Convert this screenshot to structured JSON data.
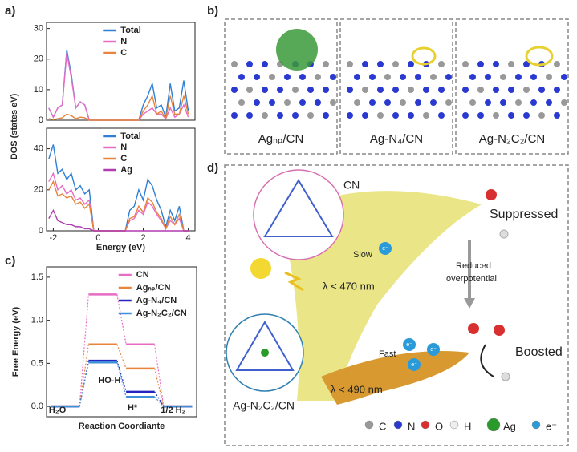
{
  "panel_labels": [
    "a)",
    "b)",
    "c)",
    "d)"
  ],
  "chart_data": [
    {
      "type": "line",
      "legend": "top-center",
      "x": [
        -2.2,
        -2.0,
        -1.8,
        -1.6,
        -1.4,
        -1.2,
        -1.0,
        -0.8,
        -0.6,
        -0.4,
        -0.2,
        0,
        0.2,
        0.4,
        0.6,
        0.8,
        1.0,
        1.2,
        1.4,
        1.6,
        1.8,
        2.0,
        2.2,
        2.4,
        2.6,
        2.8,
        3.0,
        3.2,
        3.4,
        3.6,
        3.8,
        4.0
      ],
      "xlim": [
        -2.3,
        4.3
      ],
      "ylim": [
        0,
        32
      ],
      "yticks": [
        0,
        10,
        20,
        30
      ],
      "series": [
        {
          "name": "Total",
          "color": "#2f7fd6",
          "values": [
            4,
            1,
            4,
            5,
            23,
            15,
            4,
            6,
            5,
            0,
            0,
            0,
            0,
            0,
            0,
            0,
            0,
            0,
            0,
            0,
            0,
            5,
            8,
            12,
            4,
            5,
            1,
            12,
            3,
            4,
            13,
            3
          ]
        },
        {
          "name": "N",
          "color": "#e86cc4",
          "values": [
            4,
            1,
            4,
            5,
            22,
            14,
            4,
            6,
            5,
            0,
            0,
            0,
            0,
            0,
            0,
            0,
            0,
            0,
            0,
            0,
            0,
            2,
            3,
            4,
            2,
            2,
            0.5,
            4,
            1,
            2,
            5,
            1
          ]
        },
        {
          "name": "C",
          "color": "#e8843c",
          "values": [
            0.5,
            0.2,
            0.5,
            0.8,
            2,
            1.5,
            0.5,
            1,
            0.8,
            0,
            0,
            0,
            0,
            0,
            0,
            0,
            0,
            0,
            0,
            0,
            0,
            3,
            5,
            8,
            2,
            3,
            0.5,
            8,
            2,
            2,
            8,
            2
          ]
        }
      ]
    },
    {
      "type": "line",
      "legend": "top-center",
      "xlabel": "Energy (eV)",
      "ylabel": "DOS (states eV)",
      "x": [
        -2.2,
        -2.0,
        -1.8,
        -1.6,
        -1.4,
        -1.2,
        -1.0,
        -0.8,
        -0.6,
        -0.4,
        -0.2,
        0,
        0.2,
        0.4,
        0.6,
        0.8,
        1.0,
        1.2,
        1.4,
        1.6,
        1.8,
        2.0,
        2.2,
        2.4,
        2.6,
        2.8,
        3.0,
        3.2,
        3.4,
        3.6,
        3.8,
        4.0
      ],
      "xlim": [
        -2.3,
        4.3
      ],
      "ylim": [
        0,
        50
      ],
      "xticks": [
        -2,
        0,
        2,
        4
      ],
      "yticks": [
        0,
        20,
        40
      ],
      "series": [
        {
          "name": "Total",
          "color": "#2f7fd6",
          "values": [
            35,
            42,
            28,
            30,
            25,
            28,
            20,
            22,
            18,
            20,
            0,
            0,
            0,
            0,
            0,
            0,
            0,
            0,
            10,
            12,
            20,
            15,
            25,
            22,
            15,
            10,
            2,
            10,
            5,
            12,
            0,
            0
          ]
        },
        {
          "name": "N",
          "color": "#e86cc4",
          "values": [
            24,
            28,
            20,
            22,
            18,
            20,
            15,
            16,
            13,
            15,
            0,
            0,
            0,
            0,
            0,
            0,
            0,
            0,
            5,
            6,
            10,
            8,
            14,
            12,
            8,
            5,
            1,
            5,
            3,
            6,
            0,
            0
          ]
        },
        {
          "name": "C",
          "color": "#e8843c",
          "values": [
            20,
            24,
            17,
            18,
            16,
            17,
            13,
            14,
            11,
            13,
            0,
            0,
            0,
            0,
            0,
            0,
            0,
            0,
            6,
            7,
            12,
            9,
            16,
            14,
            9,
            6,
            1,
            7,
            3,
            8,
            0,
            0
          ]
        },
        {
          "name": "Ag",
          "color": "#b03cb0",
          "values": [
            6,
            10,
            5,
            4,
            3,
            3,
            2,
            2,
            1,
            1,
            0,
            0,
            0,
            0,
            0,
            0,
            0,
            0,
            0,
            0,
            0,
            0,
            0,
            0,
            0,
            0,
            0,
            0,
            0,
            0,
            0,
            0
          ]
        }
      ]
    },
    {
      "type": "step",
      "legend": "top-right",
      "xlabel": "Reaction Coordiante",
      "ylabel": "Free Energy (eV)",
      "categories": [
        "H₂O",
        "HO-H",
        "H*",
        "1/2 H₂"
      ],
      "ylim": [
        -0.12,
        1.62
      ],
      "yticks": [
        {
          "value": 0,
          "label": "0.0"
        },
        0.5,
        {
          "value": 1,
          "label": "1.0"
        },
        1.5
      ],
      "series": [
        {
          "name": "CN",
          "color": "#e86cc4",
          "values": [
            0,
            1.3,
            0.72,
            0
          ]
        },
        {
          "name": "Agₙₚ/CN",
          "color": "#e8843c",
          "values": [
            0,
            0.72,
            0.44,
            0
          ]
        },
        {
          "name": "Ag-N₄/CN",
          "color": "#2424c0",
          "values": [
            0,
            0.53,
            0.17,
            0
          ]
        },
        {
          "name": "Ag-N₂C₂/CN",
          "color": "#3f8fd8",
          "values": [
            0,
            0.51,
            0.11,
            0
          ]
        }
      ]
    }
  ],
  "panel_b": {
    "captions": [
      "Agₙₚ/CN",
      "Ag-N₄/CN",
      "Ag-N₂C₂/CN"
    ]
  },
  "panel_d": {
    "cn": "CN",
    "suppressed": "Suppressed",
    "reduced": "Reduced",
    "overpotential": "overpotential",
    "slow": "Slow",
    "lambda1": "λ < 470 nm",
    "boosted": "Boosted",
    "fast": "Fast",
    "lambda2": "λ < 490 nm",
    "catalyst": "Ag-N₂C₂/CN",
    "electron": "e⁻",
    "legend": [
      "C",
      "N",
      "O",
      "H",
      "Ag",
      "e⁻"
    ]
  }
}
